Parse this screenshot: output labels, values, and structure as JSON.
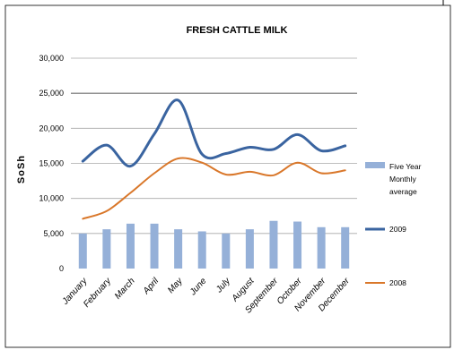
{
  "chart_data": {
    "type": "bar",
    "title": "FRESH CATTLE MILK",
    "ylabel": "SoSh",
    "xlabel": "",
    "ylim": [
      0,
      30000
    ],
    "yticks": [
      "0",
      "5,000",
      "10,000",
      "15,000",
      "20,000",
      "25,000",
      "30,000"
    ],
    "categories": [
      "January",
      "February",
      "March",
      "April",
      "May",
      "June",
      "July",
      "August",
      "September",
      "October",
      "November",
      "December"
    ],
    "grid": true,
    "legend_position": "right",
    "series": [
      {
        "name_lines": [
          "Five Year",
          "Monthly",
          "average"
        ],
        "name": "Five Year Monthly average",
        "kind": "bar",
        "color": "#95b0d8",
        "values": [
          5000,
          5600,
          6400,
          6400,
          5600,
          5300,
          5000,
          5600,
          6800,
          6700,
          5900,
          5900
        ]
      },
      {
        "name": "2009",
        "name_lines": [
          "2009"
        ],
        "kind": "line",
        "color": "#3a64a0",
        "values": [
          15300,
          17600,
          14600,
          19200,
          24000,
          16300,
          16400,
          17300,
          17000,
          19100,
          16800,
          17500
        ]
      },
      {
        "name": "2008",
        "name_lines": [
          "2008"
        ],
        "kind": "line",
        "color": "#d9772a",
        "values": [
          7100,
          8200,
          10800,
          13600,
          15700,
          15100,
          13400,
          13800,
          13300,
          15100,
          13600,
          14000
        ]
      }
    ]
  }
}
